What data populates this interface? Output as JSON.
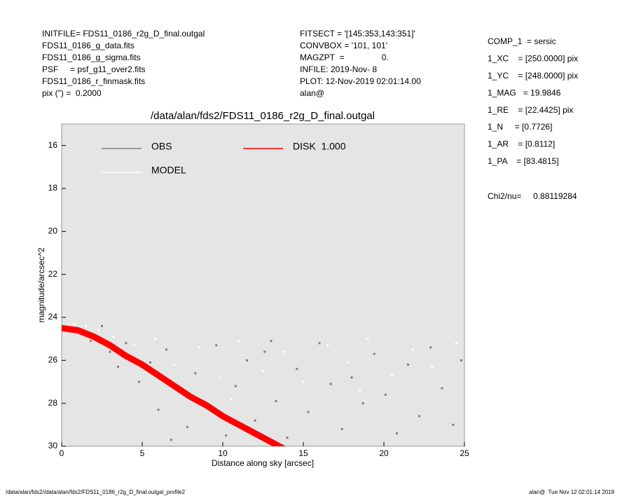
{
  "header": {
    "left": [
      "INITFILE= FDS11_0186_r2g_D_final.outgal",
      "FDS11_0186_g_data.fits",
      "FDS11_0186_g_sigma.fits",
      "PSF     = psf_g11_over2.fits",
      "FDS11_0186_r_finmask.fits",
      "pix (\") =  0.2000"
    ],
    "middle": [
      "FITSECT = '[145:353,143:351]'",
      "CONVBOX = '101, 101'",
      "MAGZPT  =                0.",
      "INFILE: 2019-Nov- 8",
      "PLOT: 12-Nov-2019 02:01:14.00",
      "alan@"
    ],
    "right": [
      "COMP_1  = sersic",
      "1_XC    = [250.0000] pix",
      "1_YC    = [248.0000] pix",
      "1_MAG   = 19.9846",
      "1_RE    = [22.4425] pix",
      "1_N     = [0.7726]",
      "1_AR    = [0.8112]",
      "1_PA    = [83.4815]"
    ],
    "chi2": "Chi2/nu=     0.88119284"
  },
  "footer": {
    "left": "/data/alan/fds2//data/alan/fds2/FDS11_0186_r2g_D_final.outgal_profile2",
    "right": "alan@  Tue Nov 12 02:01:14 2019"
  },
  "chart_data": {
    "type": "scatter",
    "title": "/data/alan/fds2/FDS11_0186_r2g_D_final.outgal",
    "x_label": "Distance along sky [arcsec]",
    "y_label": "magnitude/arcsec^2",
    "xlim": [
      0,
      25
    ],
    "ylim": [
      30,
      15
    ],
    "xticks": [
      0,
      5,
      10,
      15,
      20,
      25
    ],
    "yticks": [
      16,
      18,
      20,
      22,
      24,
      26,
      28,
      30
    ],
    "legend": "upper left",
    "series": [
      {
        "name": "OBS",
        "color": "#808080",
        "mode": "points",
        "x": [
          0.5,
          1.2,
          1.8,
          2.5,
          3.0,
          3.5,
          4.0,
          4.8,
          5.5,
          6.0,
          6.5,
          7.2,
          7.8,
          8.3,
          9.0,
          9.6,
          10.2,
          10.8,
          11.5,
          12.0,
          12.6,
          13.3,
          14.0,
          14.6,
          15.3,
          16.0,
          16.7,
          17.4,
          18.0,
          18.7,
          19.4,
          20.1,
          20.8,
          21.5,
          22.2,
          22.9,
          23.6,
          24.3,
          24.8,
          6.8,
          13.0
        ],
        "values": [
          24.5,
          24.7,
          25.1,
          24.4,
          25.6,
          26.3,
          25.2,
          27.0,
          26.1,
          28.3,
          25.5,
          27.4,
          29.1,
          26.6,
          28.0,
          25.3,
          29.5,
          27.2,
          26.0,
          28.8,
          25.6,
          27.9,
          29.6,
          26.4,
          28.4,
          25.2,
          27.1,
          29.2,
          26.8,
          28.0,
          25.7,
          27.6,
          29.4,
          26.2,
          28.6,
          25.4,
          27.3,
          29.0,
          26.0,
          29.7,
          25.1
        ]
      },
      {
        "name": "MODEL",
        "color": "#ffffff",
        "mode": "points",
        "x": [
          0.8,
          1.5,
          2.3,
          3.2,
          4.5,
          5.8,
          7.0,
          8.5,
          9.8,
          11.0,
          12.5,
          13.8,
          15.0,
          16.5,
          17.8,
          19.0,
          20.5,
          21.8,
          23.0,
          24.5,
          10.5,
          18.5
        ],
        "values": [
          24.3,
          24.4,
          24.6,
          24.9,
          25.3,
          25.0,
          26.2,
          25.4,
          26.8,
          25.1,
          26.5,
          25.6,
          27.0,
          25.3,
          26.1,
          25.0,
          26.7,
          25.5,
          26.3,
          25.2,
          27.8,
          27.4
        ]
      },
      {
        "name": "DISK  1.000",
        "color": "#ff0000",
        "mode": "line",
        "x": [
          0,
          1,
          2,
          3,
          4,
          5,
          6,
          7,
          8,
          9,
          10,
          11,
          12,
          13,
          14
        ],
        "values": [
          24.5,
          24.6,
          24.9,
          25.3,
          25.8,
          26.2,
          26.7,
          27.2,
          27.7,
          28.1,
          28.6,
          29.0,
          29.4,
          29.8,
          30.2
        ]
      }
    ]
  }
}
